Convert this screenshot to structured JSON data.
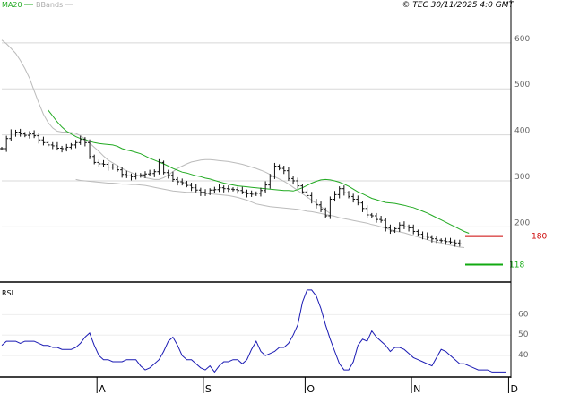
{
  "legend": {
    "ma_label": "MA20",
    "bb_label": "BBands"
  },
  "copyright": "© TEC 30/11/2025 4:0 GMT",
  "colors": {
    "ma": "#22aa22",
    "bb": "#bbbbbb",
    "price": "#111111",
    "rsi": "#1a1ab3",
    "resistance": "#cc0000",
    "support": "#11aa11",
    "grid": "#d8d8d8",
    "axis": "#000000"
  },
  "chart_data": [
    {
      "type": "ohlc",
      "title": "",
      "legend": [
        "MA20",
        "BBands"
      ],
      "ylim": [
        80,
        660
      ],
      "y_ticks": [
        200,
        300,
        400,
        500,
        600
      ],
      "y_tick_labels": [
        "200",
        "300",
        "400",
        "500",
        "600"
      ],
      "grid": true,
      "x_ticks": [
        {
          "i": 20,
          "label": "A"
        },
        {
          "i": 43,
          "label": "S"
        },
        {
          "i": 65,
          "label": "O"
        },
        {
          "i": 88,
          "label": "N"
        },
        {
          "i": 109,
          "label": "D"
        }
      ],
      "close": [
        370,
        392,
        404,
        406,
        402,
        399,
        402,
        398,
        389,
        383,
        378,
        376,
        371,
        370,
        373,
        378,
        383,
        390,
        383,
        353,
        340,
        337,
        336,
        330,
        330,
        324,
        314,
        311,
        309,
        311,
        313,
        315,
        316,
        320,
        340,
        318,
        312,
        303,
        298,
        296,
        290,
        285,
        280,
        275,
        273,
        280,
        281,
        285,
        283,
        282,
        281,
        279,
        276,
        272,
        271,
        273,
        279,
        291,
        310,
        332,
        327,
        322,
        305,
        300,
        289,
        276,
        268,
        256,
        248,
        238,
        224,
        260,
        270,
        283,
        274,
        266,
        260,
        252,
        240,
        226,
        224,
        216,
        214,
        198,
        191,
        196,
        204,
        200,
        198,
        190,
        184,
        180,
        177,
        174,
        171,
        170,
        168,
        167,
        165,
        163
      ],
      "ma20": [
        454,
        441,
        428,
        417,
        408,
        402,
        396,
        392,
        390,
        386,
        383,
        381,
        380,
        379,
        378,
        375,
        370,
        367,
        365,
        362,
        359,
        354,
        349,
        345,
        341,
        337,
        332,
        327,
        323,
        319,
        317,
        314,
        311,
        309,
        306,
        304,
        301,
        298,
        295,
        293,
        291,
        289,
        288,
        287,
        286,
        285,
        284,
        283,
        282,
        281,
        280,
        279,
        279,
        278,
        281,
        285,
        290,
        295,
        299,
        302,
        303,
        302,
        300,
        297,
        293,
        288,
        282,
        276,
        272,
        267,
        262,
        259,
        256,
        253,
        252,
        251,
        249,
        247,
        244,
        242,
        238,
        234,
        230,
        225,
        220,
        215,
        210,
        205,
        200,
        195,
        190,
        186
      ],
      "bb_upper": [
        606,
        598,
        588,
        577,
        562,
        544,
        523,
        496,
        469,
        445,
        427,
        415,
        408,
        406,
        406,
        405,
        403,
        398,
        391,
        382,
        373,
        364,
        354,
        345,
        339,
        333,
        327,
        322,
        318,
        313,
        310,
        307,
        305,
        303,
        303,
        307,
        313,
        320,
        327,
        332,
        337,
        341,
        343,
        345,
        346,
        346,
        345,
        344,
        343,
        342,
        340,
        338,
        336,
        333,
        330,
        327,
        323,
        319,
        314,
        309,
        304,
        299,
        293,
        286,
        279,
        272,
        265,
        258,
        251,
        244,
        236,
        229
      ],
      "bb_lower": [
        303,
        301,
        300,
        299,
        298,
        297,
        296,
        295,
        295,
        294,
        293,
        293,
        292,
        292,
        291,
        290,
        288,
        286,
        284,
        282,
        280,
        278,
        277,
        276,
        275,
        275,
        274,
        274,
        273,
        272,
        271,
        270,
        269,
        268,
        266,
        264,
        261,
        258,
        254,
        250,
        248,
        246,
        244,
        243,
        242,
        241,
        240,
        239,
        238,
        236,
        234,
        233,
        231,
        229,
        227,
        225,
        223,
        220,
        218,
        216,
        214,
        212,
        210,
        208,
        205,
        203,
        200,
        197,
        194,
        191,
        189,
        187,
        184,
        181,
        178,
        175,
        172,
        169,
        167,
        165,
        162,
        160,
        158,
        156,
        155
      ],
      "series_start_index": {
        "ma20": 10,
        "bb_upper": 0,
        "bb_lower": 16
      },
      "levels": [
        {
          "name": "resistance",
          "value": 180,
          "label": "180"
        },
        {
          "name": "support",
          "value": 118,
          "label": "118"
        }
      ]
    },
    {
      "type": "line",
      "title": "RSI",
      "ylim": [
        30,
        75
      ],
      "y_ticks": [
        40,
        50,
        60
      ],
      "y_tick_labels": [
        "40",
        "50",
        "60"
      ],
      "values": [
        45,
        47,
        47,
        47,
        46,
        47,
        47,
        47,
        46,
        45,
        45,
        44,
        44,
        43,
        43,
        43,
        44,
        46,
        49,
        51,
        45,
        40,
        38,
        38,
        37,
        37,
        37,
        38,
        38,
        38,
        35,
        33,
        34,
        36,
        38,
        42,
        47,
        49,
        45,
        40,
        38,
        38,
        36,
        34,
        33,
        35,
        32,
        35,
        37,
        37,
        38,
        38,
        36,
        38,
        43,
        47,
        42,
        40,
        41,
        42,
        44,
        44,
        46,
        50,
        55,
        66,
        72,
        72,
        69,
        63,
        55,
        48,
        42,
        36,
        33,
        33,
        37,
        45,
        48,
        47,
        52,
        49,
        47,
        45,
        42,
        44,
        44,
        43,
        41,
        39,
        38,
        37,
        36,
        35,
        39,
        43,
        42,
        40,
        38,
        36,
        36,
        35,
        34,
        33,
        33,
        33,
        32,
        32,
        32,
        32
      ]
    }
  ]
}
